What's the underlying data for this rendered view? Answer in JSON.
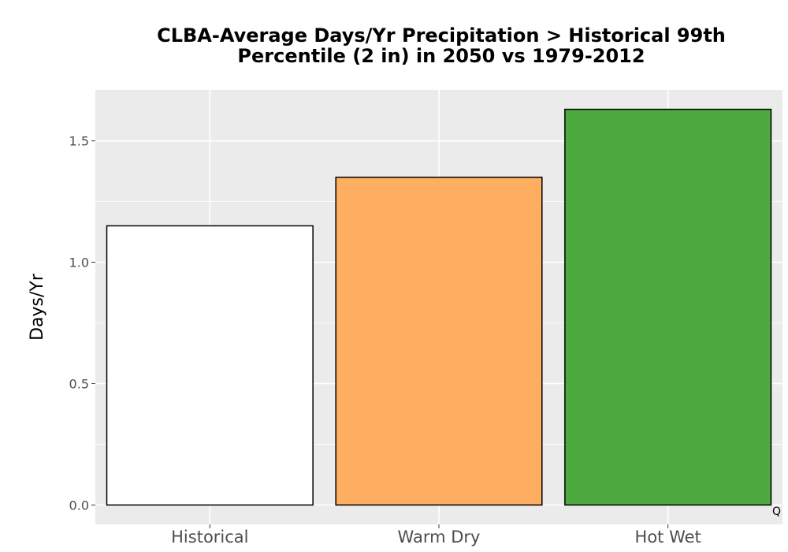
{
  "chart_data": {
    "type": "bar",
    "title_line1": "CLBA-Average Days/Yr Precipitation > Historical 99th",
    "title_line2": "Percentile (2 in) in 2050 vs 1979-2012",
    "xlabel": "",
    "ylabel": "Days/Yr",
    "categories": [
      "Historical",
      "Warm Dry",
      "Hot Wet"
    ],
    "values": [
      1.15,
      1.35,
      1.63
    ],
    "colors": [
      "#ffffff",
      "#fdae61",
      "#4daa3f"
    ],
    "yticks": [
      0.0,
      0.5,
      1.0,
      1.5
    ],
    "ytick_labels": [
      "0.0",
      "0.5",
      "1.0",
      "1.5"
    ],
    "ylim": [
      -0.08,
      1.71
    ],
    "grid": true,
    "panel_background": "#ebebeb",
    "bar_outline": "#000000",
    "corner_mark": "Q"
  }
}
